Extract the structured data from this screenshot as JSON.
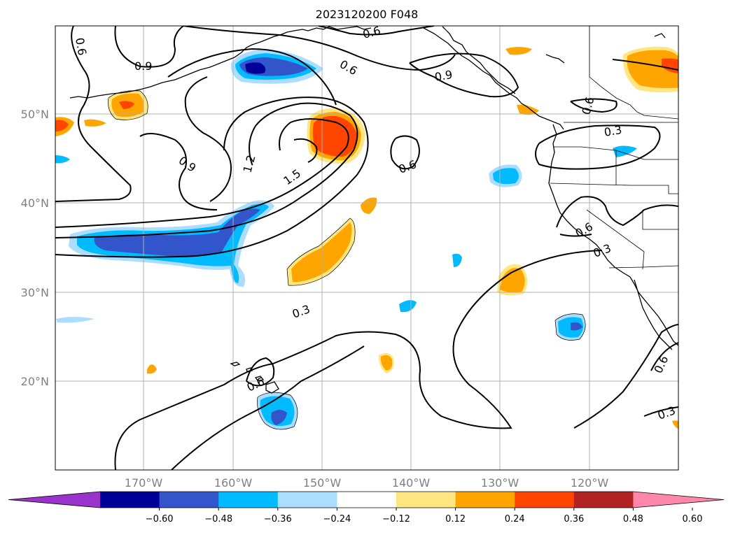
{
  "title": "2023120200 F048",
  "latitude_labels": [
    "50°N",
    "40°N",
    "30°N",
    "20°N"
  ],
  "longitude_labels": [
    "170°W",
    "160°W",
    "150°W",
    "140°W",
    "130°W",
    "120°W"
  ],
  "contour_labels": [
    "0.6",
    "0.9",
    "0.6",
    "0.9",
    "0.6",
    "0.6",
    "0.3",
    "0.9",
    "1.2",
    "1.5",
    "0.6",
    "0.6",
    "0.3",
    "0.3",
    "0.6",
    "0.6",
    "0.3"
  ],
  "colorbar": {
    "ticks": [
      "−0.60",
      "−0.48",
      "−0.36",
      "−0.24",
      "−0.12",
      "0.12",
      "0.24",
      "0.36",
      "0.48",
      "0.60"
    ],
    "colors": [
      "#9933cc",
      "#000099",
      "#3355cc",
      "#00bbff",
      "#aaddff",
      "#ffffff",
      "#ffe680",
      "#ffa500",
      "#ff4500",
      "#b22222",
      "#ff88aa"
    ]
  }
}
